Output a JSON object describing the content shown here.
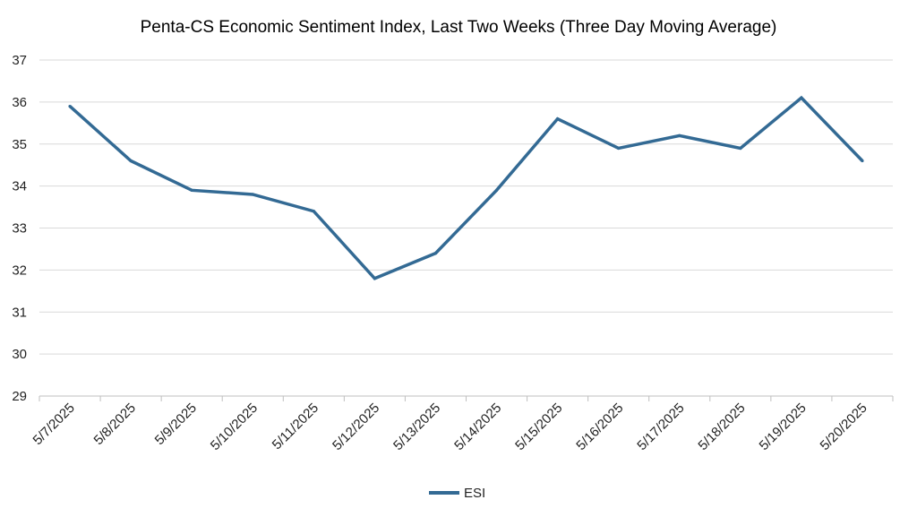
{
  "chart_data": {
    "type": "line",
    "title": "Penta-CS Economic Sentiment Index, Last Two Weeks (Three Day Moving Average)",
    "xlabel": "",
    "ylabel": "",
    "categories": [
      "5/7/2025",
      "5/8/2025",
      "5/9/2025",
      "5/10/2025",
      "5/11/2025",
      "5/12/2025",
      "5/13/2025",
      "5/14/2025",
      "5/15/2025",
      "5/16/2025",
      "5/17/2025",
      "5/18/2025",
      "5/19/2025",
      "5/20/2025"
    ],
    "series": [
      {
        "name": "ESI",
        "color": "#336a94",
        "values": [
          35.9,
          34.6,
          33.9,
          33.8,
          33.4,
          31.8,
          32.4,
          33.9,
          35.6,
          34.9,
          35.2,
          34.9,
          36.1,
          34.6
        ]
      }
    ],
    "ylim": [
      29,
      37
    ],
    "yticks": [
      "29",
      "30",
      "31",
      "32",
      "33",
      "34",
      "35",
      "36",
      "37"
    ],
    "grid": true,
    "legend": "bottom"
  }
}
